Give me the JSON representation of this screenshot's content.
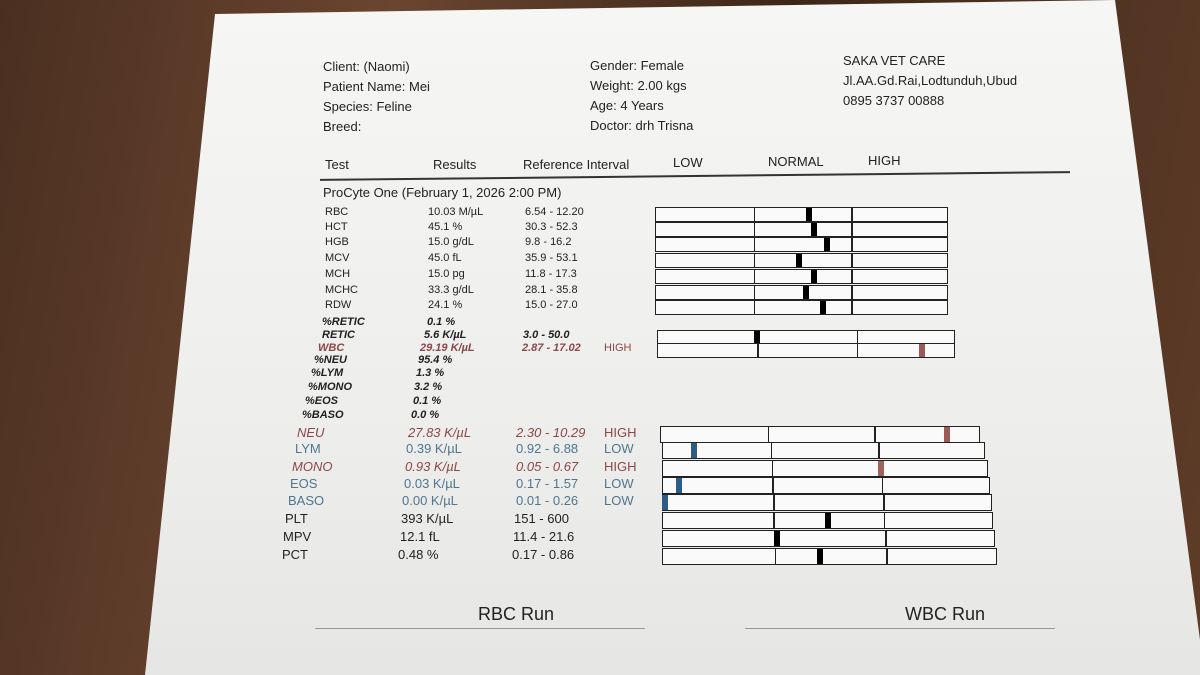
{
  "header": {
    "client": "Client:  (Naomi)",
    "patient": "Patient Name: Mei",
    "species": "Species: Feline",
    "breed": "Breed:",
    "gender": "Gender: Female",
    "weight": "Weight: 2.00 kgs",
    "age": "Age: 4 Years",
    "doctor": "Doctor: drh Trisna",
    "clinic": "SAKA VET CARE",
    "address": "Jl.AA.Gd.Rai,Lodtunduh,Ubud",
    "phone": "0895 3737 00888"
  },
  "columns": [
    "Test",
    "Results",
    "Reference Interval",
    "LOW",
    "NORMAL",
    "HIGH"
  ],
  "section": "ProCyte One (February 1, 2026 2:00 PM)",
  "rows": [
    {
      "test": "RBC",
      "result": "10.03 M/µL",
      "reference": "6.54 - 12.20"
    },
    {
      "test": "HCT",
      "result": "45.1 %",
      "reference": "30.3 - 52.3"
    },
    {
      "test": "HGB",
      "result": "15.0 g/dL",
      "reference": "9.8 - 16.2"
    },
    {
      "test": "MCV",
      "result": "45.0 fL",
      "reference": "35.9 - 53.1"
    },
    {
      "test": "MCH",
      "result": "15.0 pg",
      "reference": "11.8 - 17.3"
    },
    {
      "test": "MCHC",
      "result": "33.3 g/dL",
      "reference": "28.1 - 35.8"
    },
    {
      "test": "RDW",
      "result": "24.1 %",
      "reference": "15.0 - 27.0"
    },
    {
      "test": "%RETIC",
      "result": "0.1 %"
    },
    {
      "test": "RETIC",
      "result": "5.6 K/µL",
      "reference": "3.0 - 50.0"
    },
    {
      "test": "WBC",
      "result": "29.19 K/µL",
      "reference": "2.87 - 17.02",
      "flag": "HIGH"
    },
    {
      "test": "%NEU",
      "result": "95.4 %"
    },
    {
      "test": "%LYM",
      "result": "1.3 %"
    },
    {
      "test": "%MONO",
      "result": "3.2 %"
    },
    {
      "test": "%EOS",
      "result": "0.1 %"
    },
    {
      "test": "%BASO",
      "result": "0.0 %"
    },
    {
      "test": "NEU",
      "result": "27.83 K/µL",
      "reference": "2.30 - 10.29",
      "flag": "HIGH"
    },
    {
      "test": "LYM",
      "result": "0.39 K/µL",
      "reference": "0.92 - 6.88",
      "flag": "LOW"
    },
    {
      "test": "MONO",
      "result": "0.93 K/µL",
      "reference": "0.05 - 0.67",
      "flag": "HIGH"
    },
    {
      "test": "EOS",
      "result": "0.03 K/µL",
      "reference": "0.17 - 1.57",
      "flag": "LOW"
    },
    {
      "test": "BASO",
      "result": "0.00 K/µL",
      "reference": "0.01 - 0.26",
      "flag": "LOW"
    },
    {
      "test": "PLT",
      "result": "393 K/µL",
      "reference": "151 - 600"
    },
    {
      "test": "MPV",
      "result": "12.1 fL",
      "reference": "11.4 - 21.6"
    },
    {
      "test": "PCT",
      "result": "0.48 %",
      "reference": "0.17 - 0.86"
    }
  ],
  "footer": [
    "RBC Run",
    "WBC Run"
  ]
}
